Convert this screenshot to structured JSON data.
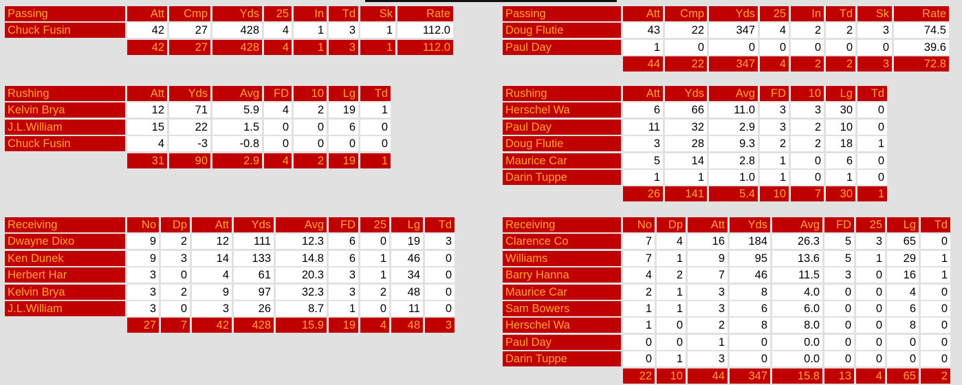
{
  "colors": {
    "header_bg": "#c00000",
    "header_text": "#ffa23a",
    "cell_bg": "#ffffff",
    "background": "#e1e1e1"
  },
  "tables": {
    "passing_left": {
      "title": "Passing",
      "headers": [
        "Att",
        "Cmp",
        "Yds",
        "25",
        "In",
        "Td",
        "Sk",
        "Rate"
      ],
      "rows": [
        {
          "name": "Chuck Fusin",
          "values": [
            "42",
            "27",
            "428",
            "4",
            "1",
            "3",
            "1",
            "112.0"
          ]
        }
      ],
      "totals": [
        "42",
        "27",
        "428",
        "4",
        "1",
        "3",
        "1",
        "112.0"
      ]
    },
    "passing_right": {
      "title": "Passing",
      "headers": [
        "Att",
        "Cmp",
        "Yds",
        "25",
        "In",
        "Td",
        "Sk",
        "Rate"
      ],
      "rows": [
        {
          "name": "Doug Flutie",
          "values": [
            "43",
            "22",
            "347",
            "4",
            "2",
            "2",
            "3",
            "74.5"
          ]
        },
        {
          "name": "Paul Day",
          "values": [
            "1",
            "0",
            "0",
            "0",
            "0",
            "0",
            "0",
            "39.6"
          ]
        }
      ],
      "totals": [
        "44",
        "22",
        "347",
        "4",
        "2",
        "2",
        "3",
        "72.8"
      ]
    },
    "rushing_left": {
      "title": "Rushing",
      "headers": [
        "Att",
        "Yds",
        "Avg",
        "FD",
        "10",
        "Lg",
        "Td"
      ],
      "rows": [
        {
          "name": "Kelvin Brya",
          "values": [
            "12",
            "71",
            "5.9",
            "4",
            "2",
            "19",
            "1"
          ]
        },
        {
          "name": "J.L.William",
          "values": [
            "15",
            "22",
            "1.5",
            "0",
            "0",
            "6",
            "0"
          ]
        },
        {
          "name": "Chuck Fusin",
          "values": [
            "4",
            "-3",
            "-0.8",
            "0",
            "0",
            "0",
            "0"
          ]
        }
      ],
      "totals": [
        "31",
        "90",
        "2.9",
        "4",
        "2",
        "19",
        "1"
      ]
    },
    "rushing_right": {
      "title": "Rushing",
      "headers": [
        "Att",
        "Yds",
        "Avg",
        "FD",
        "10",
        "Lg",
        "Td"
      ],
      "rows": [
        {
          "name": "Herschel Wa",
          "values": [
            "6",
            "66",
            "11.0",
            "3",
            "3",
            "30",
            "0"
          ]
        },
        {
          "name": "Paul Day",
          "values": [
            "11",
            "32",
            "2.9",
            "3",
            "2",
            "10",
            "0"
          ]
        },
        {
          "name": "Doug Flutie",
          "values": [
            "3",
            "28",
            "9.3",
            "2",
            "2",
            "18",
            "1"
          ]
        },
        {
          "name": "Maurice Car",
          "values": [
            "5",
            "14",
            "2.8",
            "1",
            "0",
            "6",
            "0"
          ]
        },
        {
          "name": "Darin Tuppe",
          "values": [
            "1",
            "1",
            "1.0",
            "1",
            "0",
            "1",
            "0"
          ]
        }
      ],
      "totals": [
        "26",
        "141",
        "5.4",
        "10",
        "7",
        "30",
        "1"
      ]
    },
    "receiving_left": {
      "title": "Receiving",
      "headers": [
        "No",
        "Dp",
        "Att",
        "Yds",
        "Avg",
        "FD",
        "25",
        "Lg",
        "Td"
      ],
      "rows": [
        {
          "name": "Dwayne Dixo",
          "values": [
            "9",
            "2",
            "12",
            "111",
            "12.3",
            "6",
            "0",
            "19",
            "3"
          ]
        },
        {
          "name": "Ken Dunek",
          "values": [
            "9",
            "3",
            "14",
            "133",
            "14.8",
            "6",
            "1",
            "46",
            "0"
          ]
        },
        {
          "name": "Herbert Har",
          "values": [
            "3",
            "0",
            "4",
            "61",
            "20.3",
            "3",
            "1",
            "34",
            "0"
          ]
        },
        {
          "name": "Kelvin Brya",
          "values": [
            "3",
            "2",
            "9",
            "97",
            "32.3",
            "3",
            "2",
            "48",
            "0"
          ]
        },
        {
          "name": "J.L.William",
          "values": [
            "3",
            "0",
            "3",
            "26",
            "8.7",
            "1",
            "0",
            "11",
            "0"
          ]
        }
      ],
      "totals": [
        "27",
        "7",
        "42",
        "428",
        "15.9",
        "19",
        "4",
        "48",
        "3"
      ]
    },
    "receiving_right": {
      "title": "Receiving",
      "headers": [
        "No",
        "Dp",
        "Att",
        "Yds",
        "Avg",
        "FD",
        "25",
        "Lg",
        "Td"
      ],
      "rows": [
        {
          "name": "Clarence Co",
          "values": [
            "7",
            "4",
            "16",
            "184",
            "26.3",
            "5",
            "3",
            "65",
            "0"
          ]
        },
        {
          "name": "Williams",
          "values": [
            "7",
            "1",
            "9",
            "95",
            "13.6",
            "5",
            "1",
            "29",
            "1"
          ]
        },
        {
          "name": "Barry Hanna",
          "values": [
            "4",
            "2",
            "7",
            "46",
            "11.5",
            "3",
            "0",
            "16",
            "1"
          ]
        },
        {
          "name": "Maurice Car",
          "values": [
            "2",
            "1",
            "3",
            "8",
            "4.0",
            "0",
            "0",
            "4",
            "0"
          ]
        },
        {
          "name": "Sam Bowers",
          "values": [
            "1",
            "1",
            "3",
            "6",
            "6.0",
            "0",
            "0",
            "6",
            "0"
          ]
        },
        {
          "name": "Herschel Wa",
          "values": [
            "1",
            "0",
            "2",
            "8",
            "8.0",
            "0",
            "0",
            "8",
            "0"
          ]
        },
        {
          "name": "Paul Day",
          "values": [
            "0",
            "0",
            "1",
            "0",
            "0.0",
            "0",
            "0",
            "0",
            "0"
          ]
        },
        {
          "name": "Darin Tuppe",
          "values": [
            "0",
            "1",
            "3",
            "0",
            "0.0",
            "0",
            "0",
            "0",
            "0"
          ]
        }
      ],
      "totals": [
        "22",
        "10",
        "44",
        "347",
        "15.8",
        "13",
        "4",
        "65",
        "2"
      ]
    }
  }
}
